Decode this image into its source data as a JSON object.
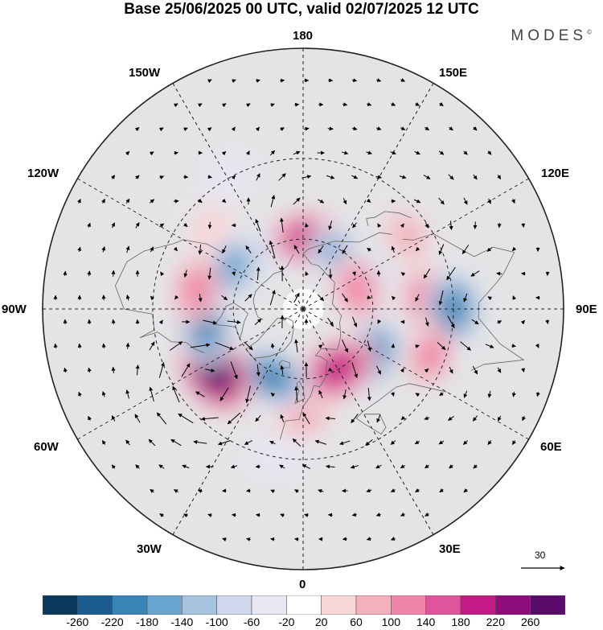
{
  "title": "Base 25/06/2025 00 UTC, valid 02/07/2025 12 UTC",
  "brand": "MODES",
  "brand_mark": "©",
  "longitude_labels": {
    "deg180": "180",
    "deg150w": "150W",
    "deg150e": "150E",
    "deg120w": "120W",
    "deg120e": "120E",
    "deg90w": "90W",
    "deg90e": "90E",
    "deg60w": "60W",
    "deg60e": "60E",
    "deg30w": "30W",
    "deg30e": "30E",
    "deg0": "0"
  },
  "reference_vector": {
    "value": "30"
  },
  "colorbar": {
    "colors": [
      "#0d3a5c",
      "#1c5d8f",
      "#3b84b8",
      "#6aa5cf",
      "#a6c3e0",
      "#cfd8ec",
      "#e8e6f3",
      "#ffffff",
      "#f8d6d9",
      "#f2b1bd",
      "#ee86a8",
      "#e0549c",
      "#c51b86",
      "#8f0d7a",
      "#5a0a6a"
    ],
    "ticks": [
      "-260",
      "-220",
      "-180",
      "-140",
      "-100",
      "-60",
      "-20",
      "20",
      "60",
      "100",
      "140",
      "180",
      "220",
      "260"
    ]
  },
  "anomaly_centers": [
    {
      "lon": -150,
      "lat": 60,
      "value": -80
    },
    {
      "lon": -120,
      "lat": 55,
      "value": -140
    },
    {
      "lon": 175,
      "lat": 60,
      "value": 180
    },
    {
      "lon": 145,
      "lat": 62,
      "value": -140
    },
    {
      "lon": 115,
      "lat": 62,
      "value": -140
    },
    {
      "lon": 110,
      "lat": 65,
      "value": 120
    },
    {
      "lon": 125,
      "lat": 38,
      "value": 60
    },
    {
      "lon": 95,
      "lat": 40,
      "value": 100
    },
    {
      "lon": 90,
      "lat": 30,
      "value": -180
    },
    {
      "lon": 70,
      "lat": 35,
      "value": 100
    },
    {
      "lon": 55,
      "lat": 55,
      "value": -200
    },
    {
      "lon": 30,
      "lat": 60,
      "value": 200
    },
    {
      "lon": 0,
      "lat": 45,
      "value": 60
    },
    {
      "lon": -25,
      "lat": 58,
      "value": -180
    },
    {
      "lon": -55,
      "lat": 45,
      "value": 260
    },
    {
      "lon": -80,
      "lat": 48,
      "value": -180
    },
    {
      "lon": -100,
      "lat": 45,
      "value": 120
    },
    {
      "lon": -130,
      "lat": 40,
      "value": 40
    },
    {
      "lon": -150,
      "lat": 30,
      "value": -40
    },
    {
      "lon": -10,
      "lat": 30,
      "value": -40
    }
  ]
}
